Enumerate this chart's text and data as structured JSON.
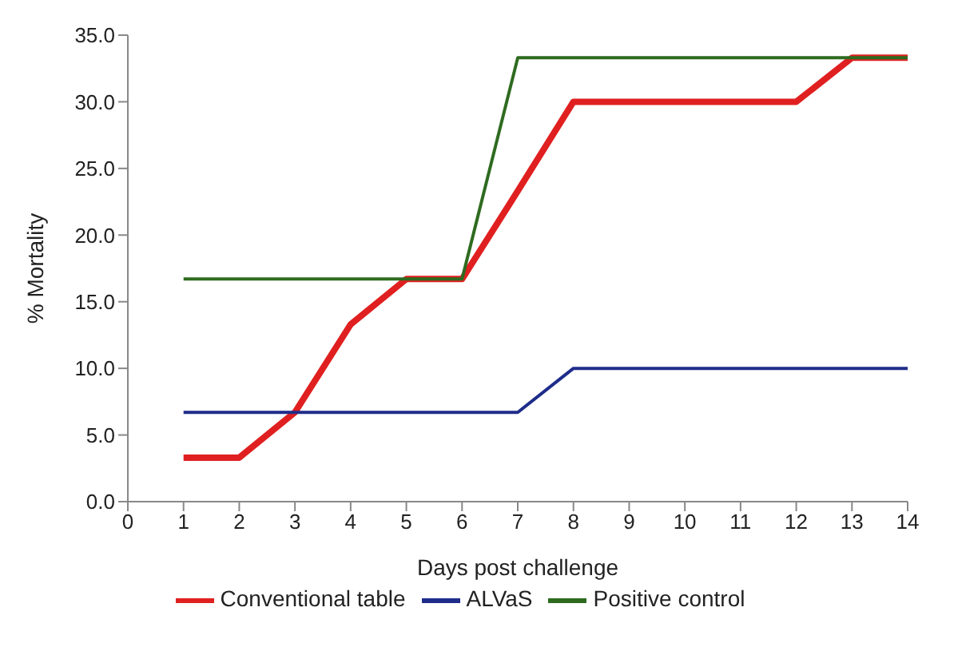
{
  "chart_data": {
    "type": "line",
    "xlabel": "Days post challenge",
    "ylabel": "% Mortality",
    "x": [
      1,
      2,
      3,
      4,
      5,
      6,
      7,
      8,
      9,
      10,
      11,
      12,
      13,
      14
    ],
    "series": [
      {
        "name": "Conventional table",
        "color": "#e02020",
        "values": [
          3.3,
          3.3,
          6.7,
          13.3,
          16.7,
          16.7,
          23.3,
          30,
          30,
          30,
          30,
          30,
          33.3,
          33.3
        ]
      },
      {
        "name": "ALVaS",
        "color": "#1f2d8a",
        "values": [
          6.7,
          6.7,
          6.7,
          6.7,
          6.7,
          6.7,
          6.7,
          10,
          10,
          10,
          10,
          10,
          10,
          10
        ]
      },
      {
        "name": "Positive control",
        "color": "#2e6b1f",
        "values": [
          16.7,
          16.7,
          16.7,
          16.7,
          16.7,
          16.7,
          33.3,
          33.3,
          33.3,
          33.3,
          33.3,
          33.3,
          33.3,
          33.3
        ]
      }
    ],
    "xlim": [
      0,
      14
    ],
    "xticks": [
      0,
      1,
      2,
      3,
      4,
      5,
      6,
      7,
      8,
      9,
      10,
      11,
      12,
      13,
      14
    ],
    "ylim": [
      0,
      35
    ],
    "yticks": [
      {
        "value": 0,
        "label": "0.0"
      },
      {
        "value": 5,
        "label": "5.0"
      },
      {
        "value": 10,
        "label": "10.0"
      },
      {
        "value": 15,
        "label": "15.0"
      },
      {
        "value": 20,
        "label": "20.0"
      },
      {
        "value": 25,
        "label": "25.0"
      },
      {
        "value": 30,
        "label": "30.0"
      },
      {
        "value": 35,
        "label": "35.0"
      }
    ],
    "grid": false,
    "legend": "bottom",
    "marker": "none",
    "line_style": "solid"
  }
}
